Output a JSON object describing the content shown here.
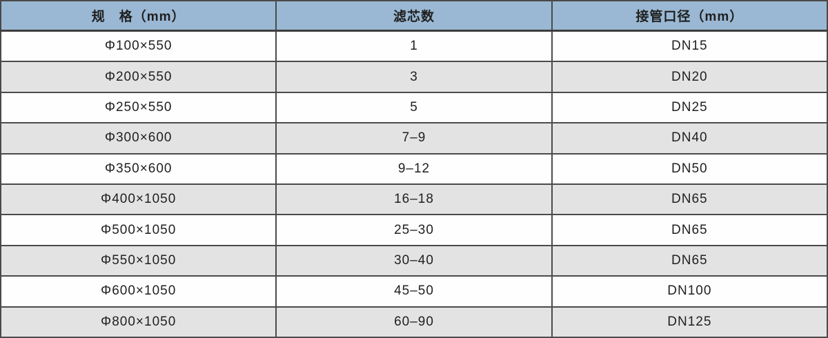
{
  "table": {
    "headers": [
      "规　格（mm）",
      "滤芯数",
      "接管口径（mm）"
    ],
    "rows": [
      {
        "spec": "Φ100×550",
        "cartridge_count": "1",
        "pipe_diameter": "DN15"
      },
      {
        "spec": "Φ200×550",
        "cartridge_count": "3",
        "pipe_diameter": "DN20"
      },
      {
        "spec": "Φ250×550",
        "cartridge_count": "5",
        "pipe_diameter": "DN25"
      },
      {
        "spec": "Φ300×600",
        "cartridge_count": "7–9",
        "pipe_diameter": "DN40"
      },
      {
        "spec": "Φ350×600",
        "cartridge_count": "9–12",
        "pipe_diameter": "DN50"
      },
      {
        "spec": "Φ400×1050",
        "cartridge_count": "16–18",
        "pipe_diameter": "DN65"
      },
      {
        "spec": "Φ500×1050",
        "cartridge_count": "25–30",
        "pipe_diameter": "DN65"
      },
      {
        "spec": "Φ550×1050",
        "cartridge_count": "30–40",
        "pipe_diameter": "DN65"
      },
      {
        "spec": "Φ600×1050",
        "cartridge_count": "45–50",
        "pipe_diameter": "DN100"
      },
      {
        "spec": "Φ800×1050",
        "cartridge_count": "60–90",
        "pipe_diameter": "DN125"
      }
    ]
  },
  "colors": {
    "header_bg": "#9ab8d3",
    "stripe_gray": "#e3e3e3",
    "row_white": "#fefefe",
    "grid_border": "#4a4a4a",
    "text": "#1f1f1f"
  }
}
